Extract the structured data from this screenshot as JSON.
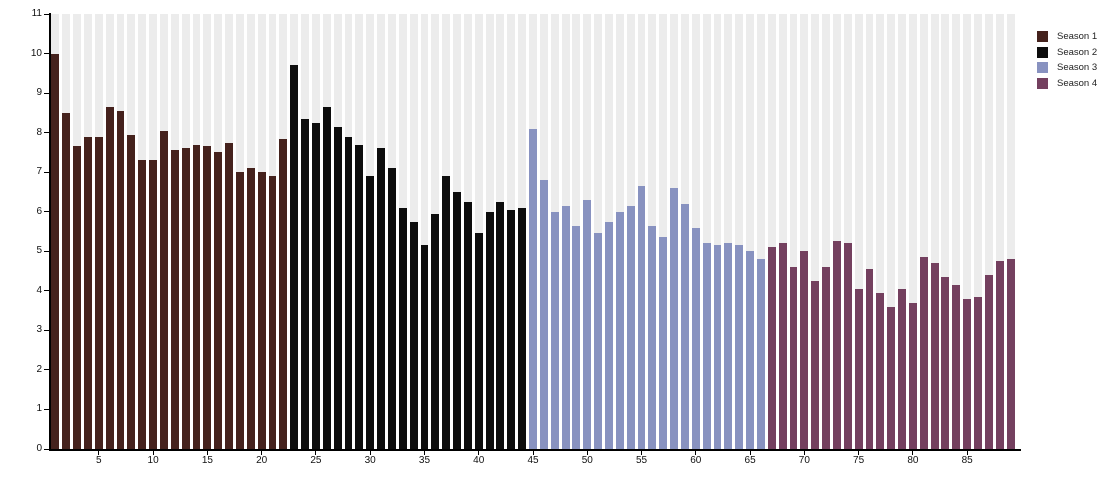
{
  "chart_data": {
    "type": "bar",
    "title": "",
    "xlabel": "",
    "ylabel": "",
    "ylim": [
      0,
      11
    ],
    "episode_count": 89,
    "y_ticks": [
      0,
      1,
      2,
      3,
      4,
      5,
      6,
      7,
      8,
      9,
      10,
      11
    ],
    "x_ticks": [
      5,
      10,
      15,
      20,
      25,
      30,
      35,
      40,
      45,
      50,
      55,
      60,
      65,
      70,
      75,
      80,
      85
    ],
    "grid": "vertical-stripes",
    "legend_position": "top-right",
    "colors": {
      "stripe": "#ececec",
      "background": "#ffffff",
      "axis": "#000000",
      "season1": "#45221d",
      "season2": "#0d0d0d",
      "season3": "#8892c0",
      "season4": "#74405f"
    },
    "series": [
      {
        "name": "Season 1",
        "color": "#45221d",
        "start_episode": 1,
        "values": [
          10.0,
          8.5,
          7.65,
          7.9,
          7.9,
          8.65,
          8.55,
          7.95,
          7.3,
          7.3,
          8.05,
          7.55,
          7.6,
          7.7,
          7.65,
          7.5,
          7.75,
          7.0,
          7.1,
          7.0,
          6.9,
          7.85
        ]
      },
      {
        "name": "Season 2",
        "color": "#0d0d0d",
        "start_episode": 23,
        "values": [
          9.7,
          8.35,
          8.25,
          8.65,
          8.15,
          7.9,
          7.7,
          6.9,
          7.6,
          7.1,
          6.1,
          5.75,
          5.15,
          5.95,
          6.9,
          6.5,
          6.25,
          5.45,
          6.0,
          6.25,
          6.05,
          6.1
        ]
      },
      {
        "name": "Season 3",
        "color": "#8892c0",
        "start_episode": 45,
        "values": [
          8.1,
          6.8,
          6.0,
          6.15,
          5.65,
          6.3,
          5.45,
          5.75,
          6.0,
          6.15,
          6.65,
          5.65,
          5.35,
          6.6,
          6.2,
          5.6,
          5.2,
          5.15,
          5.2,
          5.15,
          5.0,
          4.8
        ]
      },
      {
        "name": "Season 4",
        "color": "#74405f",
        "start_episode": 67,
        "values": [
          5.1,
          5.2,
          4.6,
          5.0,
          4.25,
          4.6,
          5.25,
          5.2,
          4.05,
          4.55,
          3.95,
          3.6,
          4.05,
          3.7,
          4.85,
          4.7,
          4.35,
          4.15,
          3.8,
          3.85,
          4.4,
          4.75,
          4.8
        ]
      }
    ]
  }
}
